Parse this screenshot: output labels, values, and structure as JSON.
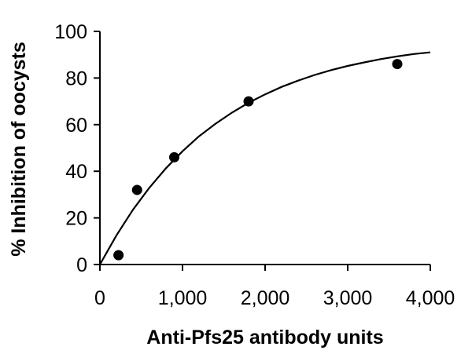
{
  "chart_data": {
    "type": "scatter",
    "title": "",
    "xlabel": "Anti-Pfs25 antibody units",
    "ylabel": "% Inhibition of oocysts",
    "xlim": [
      0,
      4000
    ],
    "ylim": [
      0,
      100
    ],
    "x_ticks": [
      0,
      1000,
      2000,
      3000,
      4000
    ],
    "x_tick_labels": [
      "0",
      "1,000",
      "2,000",
      "3,000",
      "4,000"
    ],
    "y_ticks": [
      0,
      20,
      40,
      60,
      80,
      100
    ],
    "y_tick_labels": [
      "0",
      "20",
      "40",
      "60",
      "80",
      "100"
    ],
    "grid": false,
    "legend": "none",
    "series": [
      {
        "type": "scatter",
        "x": [
          225,
          450,
          900,
          1800,
          3600
        ],
        "y": [
          4,
          32,
          46,
          70,
          86
        ]
      },
      {
        "type": "line",
        "x": [
          0,
          200,
          400,
          600,
          800,
          1000,
          1200,
          1400,
          1600,
          1800,
          2000,
          2200,
          2400,
          2600,
          2800,
          3000,
          3200,
          3400,
          3600,
          3800,
          4000
        ],
        "y": [
          0,
          12.5,
          23.5,
          33.0,
          41.3,
          48.6,
          55.0,
          60.4,
          65.2,
          69.4,
          73.0,
          76.2,
          78.9,
          81.3,
          83.4,
          85.2,
          86.7,
          88.1,
          89.3,
          90.3,
          91.0
        ]
      }
    ]
  }
}
